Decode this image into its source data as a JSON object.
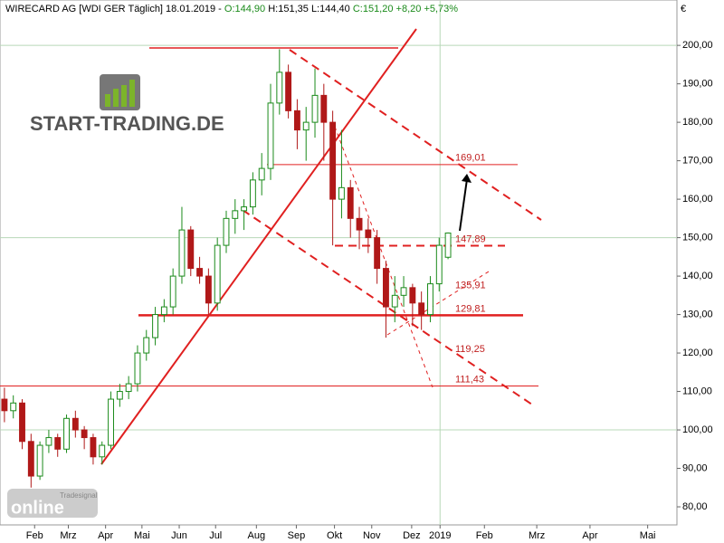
{
  "chart_data": {
    "type": "candlestick",
    "title": "WIRECARD AG [WDI GER  Täglich] 18.01.2019 -",
    "quote": [
      "O:144,90",
      "H:151,35",
      "L:144,40",
      "C:151,20",
      "+8,20",
      "+5,73%"
    ],
    "y_axis_unit": "€",
    "logo": "START-TRADING.DE",
    "watermark": [
      "Tradesignal",
      "online"
    ],
    "open": [
      108,
      105,
      107,
      97,
      88,
      96,
      98,
      95,
      103,
      100,
      98,
      93,
      96,
      108,
      110,
      112,
      120,
      124,
      130,
      132,
      140,
      152,
      142,
      140,
      133,
      148,
      155,
      157,
      158,
      165,
      168,
      185,
      193,
      183,
      178,
      180,
      187,
      180,
      160,
      163,
      155,
      152,
      150,
      142,
      132,
      135,
      137,
      133,
      130,
      138,
      144.9
    ],
    "high": [
      111,
      109,
      108,
      99,
      97,
      100,
      99,
      104,
      105,
      101,
      99,
      97,
      110,
      112,
      114,
      122,
      126,
      132,
      134,
      142,
      158,
      153,
      145,
      142,
      150,
      157,
      160,
      160,
      167,
      172,
      190,
      199,
      195,
      186,
      184,
      194,
      190,
      183,
      178,
      165,
      158,
      155,
      152,
      144,
      140,
      140,
      138,
      136,
      140,
      150,
      151.35
    ],
    "low": [
      102,
      103,
      95,
      85,
      87,
      94,
      93,
      94,
      98,
      95,
      91,
      91,
      95,
      106,
      108,
      110,
      118,
      122,
      128,
      130,
      138,
      140,
      138,
      130,
      131,
      146,
      151,
      152,
      156,
      161,
      165,
      182,
      181,
      173,
      170,
      176,
      170,
      148,
      155,
      150,
      147,
      146,
      138,
      124,
      128,
      132,
      127,
      126,
      128,
      136,
      144.4
    ],
    "close": [
      105,
      107,
      97,
      88,
      96,
      98,
      95,
      103,
      100,
      98,
      93,
      96,
      108,
      110,
      112,
      120,
      124,
      130,
      132,
      140,
      152,
      142,
      140,
      133,
      148,
      155,
      157,
      158,
      165,
      168,
      185,
      193,
      183,
      178,
      180,
      187,
      180,
      160,
      163,
      155,
      152,
      150,
      142,
      132,
      135,
      137,
      133,
      130,
      138,
      148,
      151.2
    ],
    "up_color": "#1a8a1a",
    "down_color": "#b01818",
    "xlim": [
      0,
      76.3
    ],
    "xticks": [
      {
        "value": 3.9,
        "label": "Feb"
      },
      {
        "value": 7.7,
        "label": "Mrz"
      },
      {
        "value": 11.9,
        "label": "Apr"
      },
      {
        "value": 16,
        "label": "Mai"
      },
      {
        "value": 20.2,
        "label": "Jun"
      },
      {
        "value": 24.3,
        "label": "Jul"
      },
      {
        "value": 28.9,
        "label": "Aug"
      },
      {
        "value": 33.4,
        "label": "Sep"
      },
      {
        "value": 37.7,
        "label": "Okt"
      },
      {
        "value": 41.9,
        "label": "Nov"
      },
      {
        "value": 46.4,
        "label": "Dez"
      },
      {
        "value": 49.6,
        "label": "2019"
      },
      {
        "value": 54.6,
        "label": "Feb"
      },
      {
        "value": 60.5,
        "label": "Mrz"
      },
      {
        "value": 66.5,
        "label": "Apr"
      },
      {
        "value": 73,
        "label": "Mai"
      }
    ],
    "ylim": [
      75.3,
      211.8
    ],
    "yticks": [
      {
        "value": 80,
        "label": "80,00"
      },
      {
        "value": 90,
        "label": "90,00"
      },
      {
        "value": 100,
        "label": "100,00"
      },
      {
        "value": 110,
        "label": "110,00"
      },
      {
        "value": 120,
        "label": "120,00"
      },
      {
        "value": 130,
        "label": "130,00"
      },
      {
        "value": 140,
        "label": "140,00"
      },
      {
        "value": 150,
        "label": "150,00"
      },
      {
        "value": 160,
        "label": "160,00"
      },
      {
        "value": 170,
        "label": "170,00"
      },
      {
        "value": 180,
        "label": "180,00"
      },
      {
        "value": 190,
        "label": "190,00"
      },
      {
        "value": 200,
        "label": "200,00"
      }
    ],
    "grid_values": [
      100,
      150,
      200
    ],
    "levels": [
      {
        "value": 169.01,
        "label": "169,01"
      },
      {
        "value": 147.89,
        "label": "147,89"
      },
      {
        "value": 135.91,
        "label": "135,91"
      },
      {
        "value": 129.81,
        "label": "129,81"
      },
      {
        "value": 119.25,
        "label": "119,25"
      },
      {
        "value": 111.43,
        "label": "111,43"
      }
    ]
  }
}
